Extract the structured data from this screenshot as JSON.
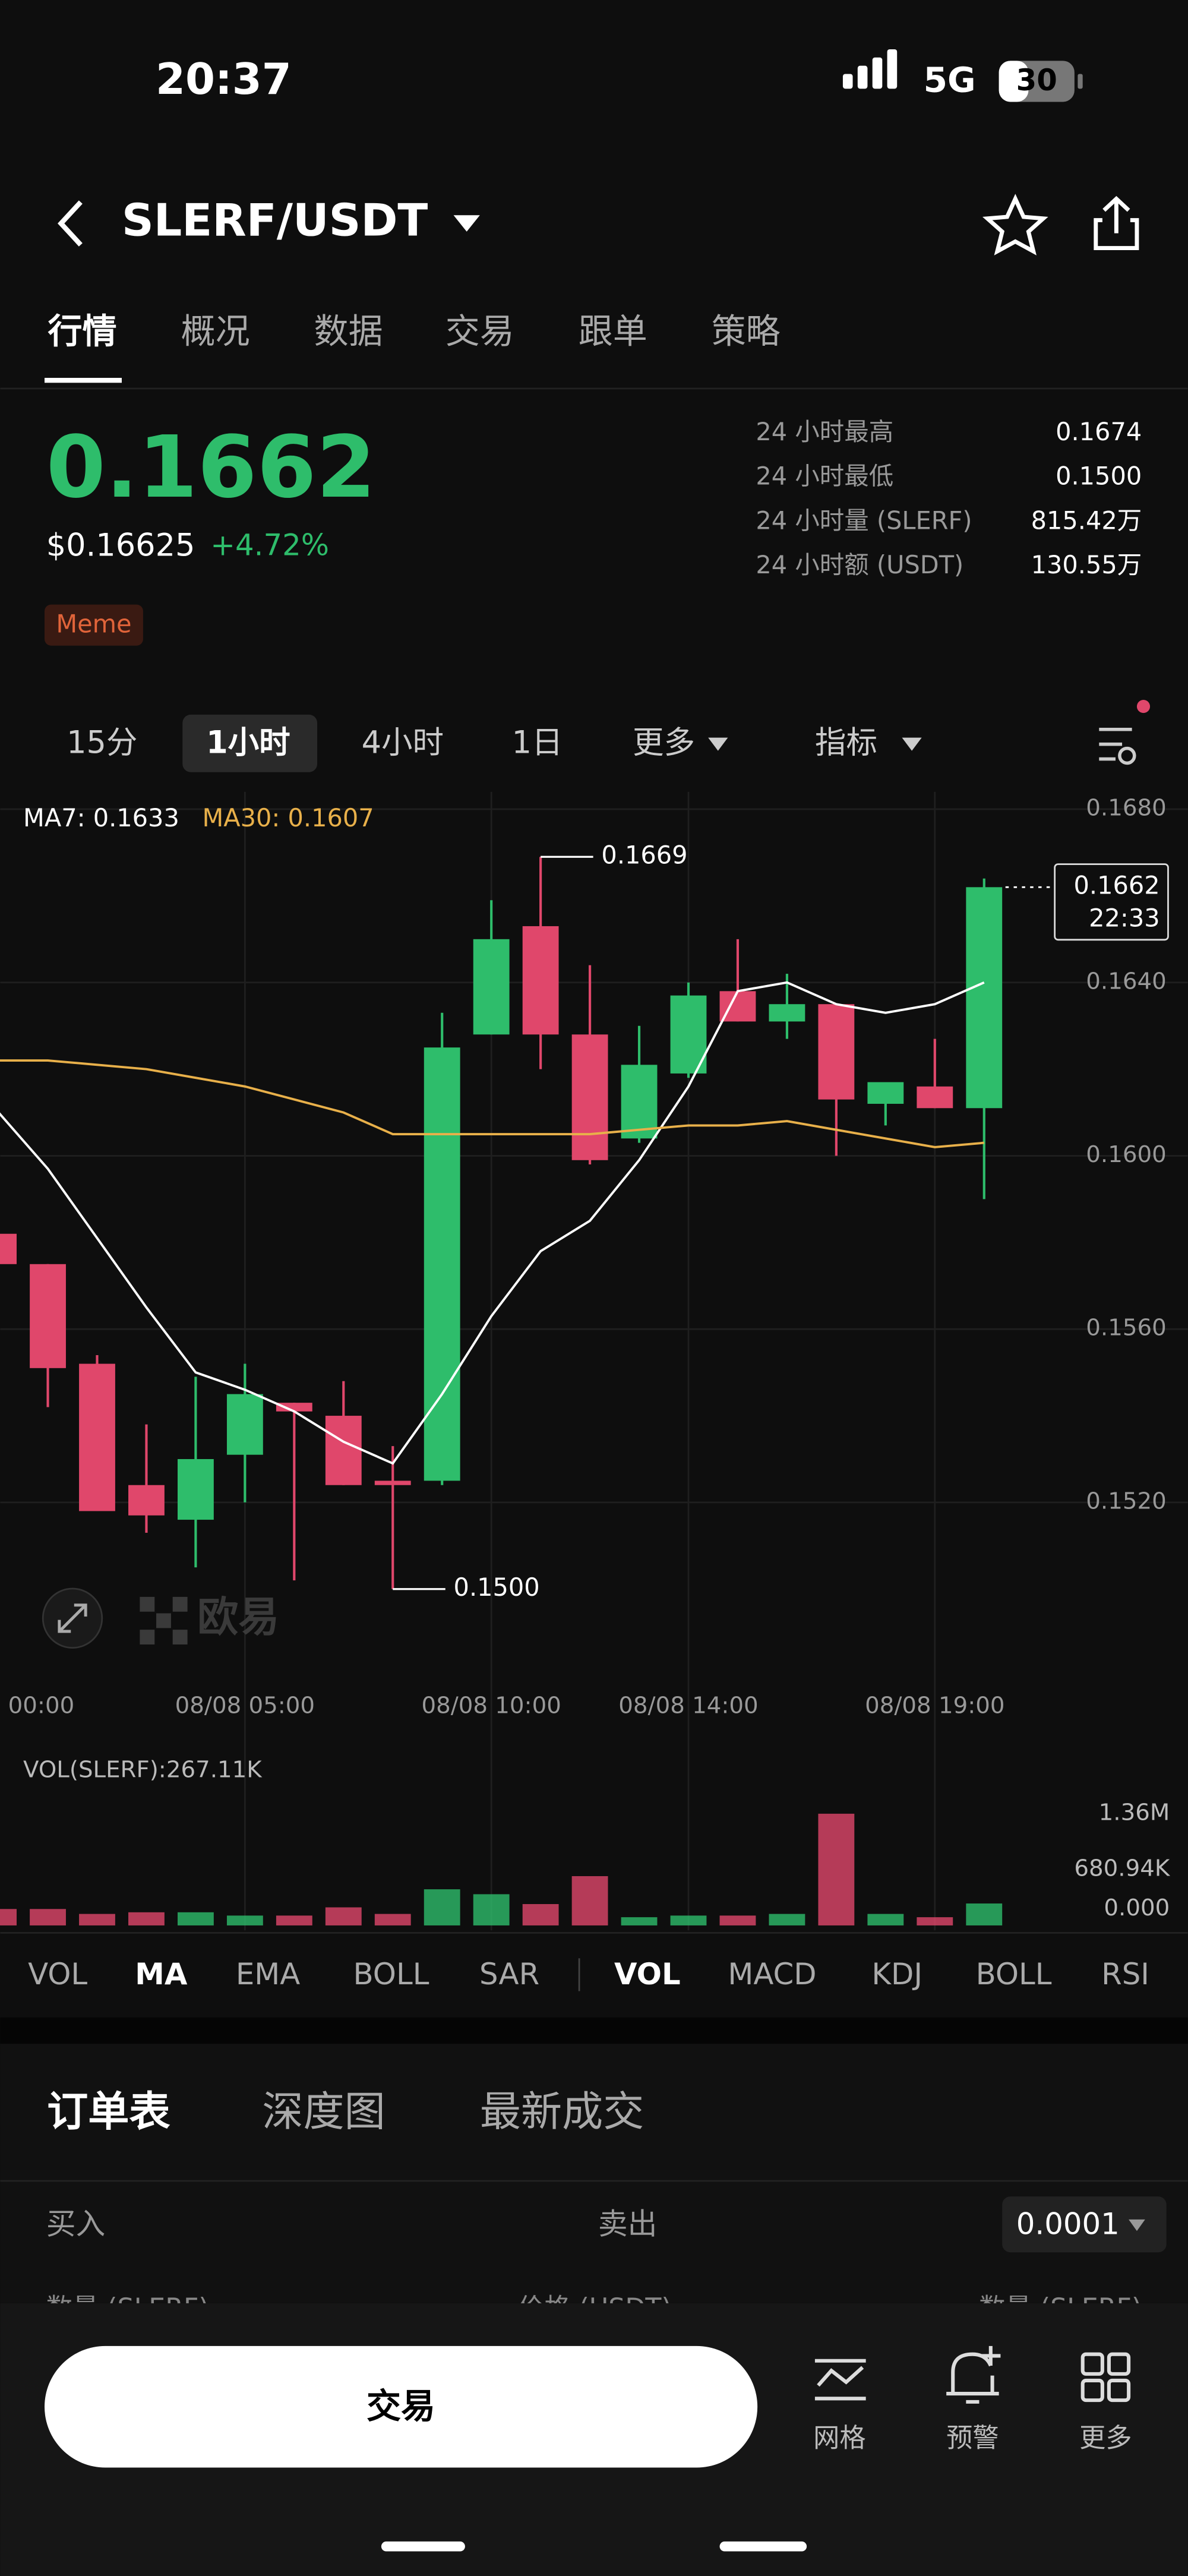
{
  "status_bar": {
    "time": "20:37",
    "network": "5G",
    "battery": "30"
  },
  "header": {
    "pair": "SLERF/USDT"
  },
  "tabs": [
    "行情",
    "概况",
    "数据",
    "交易",
    "跟单",
    "策略"
  ],
  "price": {
    "last": "0.1662",
    "usd": "$0.16625",
    "change": "+4.72%",
    "tag": "Meme"
  },
  "stats": [
    {
      "label": "24 小时最高",
      "value": "0.1674"
    },
    {
      "label": "24 小时最低",
      "value": "0.1500"
    },
    {
      "label": "24 小时量 (SLERF)",
      "value": "815.42万"
    },
    {
      "label": "24 小时额 (USDT)",
      "value": "130.55万"
    }
  ],
  "intervals": [
    "15分",
    "1小时",
    "4小时",
    "1日",
    "更多",
    "指标"
  ],
  "chart_data": {
    "type": "candlestick",
    "categories": [
      "00:00",
      null,
      null,
      null,
      null,
      "08/08 05:00",
      null,
      null,
      null,
      null,
      "08/08 10:00",
      null,
      null,
      null,
      "08/08 14:00",
      null,
      null,
      null,
      null,
      "08/08 19:00",
      null
    ],
    "open": [
      0.1582,
      0.1575,
      0.1552,
      0.1524,
      0.1516,
      0.1531,
      0.1543,
      0.154,
      0.1525,
      0.1525,
      0.1628,
      0.1653,
      0.1628,
      0.1604,
      0.1619,
      0.1638,
      0.1631,
      0.1635,
      0.1612,
      0.1616,
      0.1611
    ],
    "high": [
      0.1582,
      0.1575,
      0.1554,
      0.1538,
      0.1549,
      0.1552,
      0.1543,
      0.1548,
      0.1533,
      0.1633,
      0.1659,
      0.1669,
      0.1644,
      0.163,
      0.164,
      0.165,
      0.1642,
      0.1635,
      0.1617,
      0.1627,
      0.1664
    ],
    "low": [
      0.1575,
      0.1542,
      0.1518,
      0.1513,
      0.1505,
      0.152,
      0.1502,
      0.1524,
      0.15,
      0.1524,
      0.1628,
      0.162,
      0.1598,
      0.1603,
      0.1618,
      0.1631,
      0.1627,
      0.16,
      0.1607,
      0.1611,
      0.159
    ],
    "close": [
      0.1575,
      0.1551,
      0.1518,
      0.1517,
      0.153,
      0.1545,
      0.1541,
      0.1524,
      0.1524,
      0.1625,
      0.165,
      0.1628,
      0.1599,
      0.1621,
      0.1637,
      0.1631,
      0.1635,
      0.1613,
      0.1617,
      0.1611,
      0.1662
    ],
    "up_color": "#2ebd6b",
    "down_color": "#e0476b",
    "series": [
      {
        "name": "MA7: 0.1633",
        "color": "#ffffff",
        "values": [
          0.161,
          0.1597,
          0.1581,
          0.1565,
          0.155,
          0.1546,
          0.1541,
          0.1534,
          0.1529,
          0.1545,
          0.1563,
          0.1578,
          0.1585,
          0.1599,
          0.1616,
          0.1638,
          0.164,
          0.1635,
          0.1633,
          0.1635,
          0.164
        ]
      },
      {
        "name": "MA30: 0.1607",
        "color": "#e8b04a",
        "values": [
          0.1622,
          0.1622,
          0.1621,
          0.162,
          0.1618,
          0.1616,
          0.1613,
          0.161,
          0.1605,
          0.1605,
          0.1605,
          0.1605,
          0.1605,
          0.1606,
          0.1607,
          0.1607,
          0.1608,
          0.1606,
          0.1604,
          0.1602,
          0.1603
        ]
      }
    ],
    "ylim": [
      0.148,
      0.1684
    ],
    "yticks": [
      {
        "value": 0.168,
        "label": "0.1680"
      },
      {
        "value": 0.164,
        "label": "0.1640"
      },
      {
        "value": 0.16,
        "label": "0.1600"
      },
      {
        "value": 0.156,
        "label": "0.1560"
      },
      {
        "value": 0.152,
        "label": "0.1520"
      }
    ],
    "grid": true,
    "annotations": [
      {
        "value": 0.1669,
        "label": "0.1669"
      },
      {
        "value": 0.15,
        "label": "0.1500"
      }
    ],
    "last": {
      "value": 0.1662,
      "label": "0.1662",
      "time": "22:33"
    },
    "watermark": "欧易",
    "volume": {
      "label": "VOL(SLERF):267.11K",
      "values": [
        200000,
        200000,
        140000,
        160000,
        160000,
        120000,
        120000,
        220000,
        140000,
        440000,
        380000,
        260000,
        600000,
        100000,
        120000,
        120000,
        140000,
        1360000,
        140000,
        100000,
        267110
      ],
      "ylim": [
        0,
        1360000
      ],
      "yticks": [
        {
          "value": 1360000,
          "label": "1.36M"
        },
        {
          "value": 680940,
          "label": "680.94K"
        },
        {
          "value": 0,
          "label": "0.000"
        }
      ]
    }
  },
  "indicators": [
    "VOL",
    "MA",
    "EMA",
    "BOLL",
    "SAR",
    "VOL",
    "MACD",
    "KDJ",
    "BOLL",
    "RSI"
  ],
  "order_tabs": [
    "订单表",
    "深度图",
    "最新成交"
  ],
  "order_header": {
    "buy": "买入",
    "sell": "卖出",
    "precision": "0.0001"
  },
  "order_columns": [
    "数量 (SLERF)",
    "价格 (USDT)",
    "数量 (SLERF)"
  ],
  "bottom_bar": {
    "trade": "交易",
    "items": [
      "网格",
      "预警",
      "更多"
    ]
  }
}
